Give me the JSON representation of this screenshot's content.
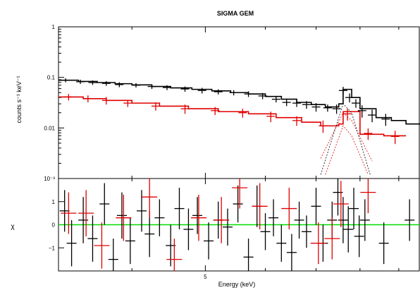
{
  "chart_data": [
    {
      "panel": "spectrum",
      "type": "line",
      "title": "SIGMA GEM",
      "ylabel": "counts s⁻¹ keV⁻¹",
      "yscale": "log",
      "ylim": [
        0.001,
        1
      ],
      "yticks": [
        {
          "value": 1,
          "label": "1"
        },
        {
          "value": 0.1,
          "label": "0.1"
        },
        {
          "value": 0.01,
          "label": "0.01"
        },
        {
          "value": 0.001,
          "label": "10⁻³"
        }
      ],
      "xscale": "log",
      "xlim": [
        3.2,
        9.6
      ],
      "series": [
        {
          "color": "#000000",
          "kind": "data",
          "points": [
            {
              "x": 3.27,
              "y": 0.088,
              "yerr": 0.008
            },
            {
              "x": 3.42,
              "y": 0.082,
              "yerr": 0.008
            },
            {
              "x": 3.55,
              "y": 0.079,
              "yerr": 0.008
            },
            {
              "x": 3.7,
              "y": 0.076,
              "yerr": 0.008
            },
            {
              "x": 3.85,
              "y": 0.072,
              "yerr": 0.008
            },
            {
              "x": 4.05,
              "y": 0.07,
              "yerr": 0.007
            },
            {
              "x": 4.25,
              "y": 0.066,
              "yerr": 0.007
            },
            {
              "x": 4.45,
              "y": 0.063,
              "yerr": 0.007
            },
            {
              "x": 4.7,
              "y": 0.059,
              "yerr": 0.007
            },
            {
              "x": 4.95,
              "y": 0.055,
              "yerr": 0.007
            },
            {
              "x": 5.2,
              "y": 0.052,
              "yerr": 0.006
            },
            {
              "x": 5.45,
              "y": 0.05,
              "yerr": 0.006
            },
            {
              "x": 5.7,
              "y": 0.047,
              "yerr": 0.006
            },
            {
              "x": 5.95,
              "y": 0.043,
              "yerr": 0.006
            },
            {
              "x": 6.2,
              "y": 0.037,
              "yerr": 0.005
            },
            {
              "x": 6.4,
              "y": 0.032,
              "yerr": 0.005
            },
            {
              "x": 6.6,
              "y": 0.031,
              "yerr": 0.005
            },
            {
              "x": 6.8,
              "y": 0.029,
              "yerr": 0.005
            },
            {
              "x": 7.0,
              "y": 0.026,
              "yerr": 0.005
            },
            {
              "x": 7.25,
              "y": 0.025,
              "yerr": 0.004
            },
            {
              "x": 7.45,
              "y": 0.024,
              "yerr": 0.005
            },
            {
              "x": 7.6,
              "y": 0.055,
              "yerr": 0.01
            },
            {
              "x": 7.75,
              "y": 0.04,
              "yerr": 0.008
            },
            {
              "x": 7.9,
              "y": 0.031,
              "yerr": 0.006
            },
            {
              "x": 8.05,
              "y": 0.022,
              "yerr": 0.006
            },
            {
              "x": 8.3,
              "y": 0.018,
              "yerr": 0.005
            },
            {
              "x": 8.65,
              "y": 0.015,
              "yerr": 0.004
            }
          ]
        },
        {
          "color": "#000000",
          "kind": "model",
          "steps": [
            [
              3.2,
              0.088
            ],
            [
              3.4,
              0.083
            ],
            [
              3.6,
              0.079
            ],
            [
              3.8,
              0.075
            ],
            [
              4.0,
              0.071
            ],
            [
              4.25,
              0.066
            ],
            [
              4.5,
              0.062
            ],
            [
              4.8,
              0.058
            ],
            [
              5.1,
              0.054
            ],
            [
              5.4,
              0.05
            ],
            [
              5.7,
              0.047
            ],
            [
              6.0,
              0.042
            ],
            [
              6.3,
              0.037
            ],
            [
              6.6,
              0.032
            ],
            [
              6.9,
              0.029
            ],
            [
              7.2,
              0.026
            ],
            [
              7.5,
              0.03
            ],
            [
              7.6,
              0.058
            ],
            [
              7.8,
              0.04
            ],
            [
              8.0,
              0.024
            ],
            [
              8.4,
              0.016
            ],
            [
              8.8,
              0.014
            ],
            [
              9.2,
              0.012
            ],
            [
              9.6,
              0.012
            ]
          ]
        },
        {
          "color": "#e00000",
          "kind": "data",
          "points": [
            {
              "x": 3.3,
              "y": 0.041,
              "yerr": 0.006
            },
            {
              "x": 3.5,
              "y": 0.038,
              "yerr": 0.006
            },
            {
              "x": 3.7,
              "y": 0.035,
              "yerr": 0.006
            },
            {
              "x": 3.95,
              "y": 0.031,
              "yerr": 0.005
            },
            {
              "x": 4.3,
              "y": 0.027,
              "yerr": 0.005
            },
            {
              "x": 4.7,
              "y": 0.024,
              "yerr": 0.005
            },
            {
              "x": 5.15,
              "y": 0.022,
              "yerr": 0.004
            },
            {
              "x": 5.6,
              "y": 0.02,
              "yerr": 0.004
            },
            {
              "x": 6.1,
              "y": 0.017,
              "yerr": 0.004
            },
            {
              "x": 6.6,
              "y": 0.014,
              "yerr": 0.003
            },
            {
              "x": 7.15,
              "y": 0.011,
              "yerr": 0.003
            },
            {
              "x": 7.7,
              "y": 0.019,
              "yerr": 0.005
            },
            {
              "x": 8.2,
              "y": 0.0078,
              "yerr": 0.002
            },
            {
              "x": 8.9,
              "y": 0.0068,
              "yerr": 0.002
            }
          ]
        },
        {
          "color": "#e00000",
          "kind": "model",
          "steps": [
            [
              3.2,
              0.041
            ],
            [
              3.45,
              0.038
            ],
            [
              3.7,
              0.035
            ],
            [
              4.0,
              0.031
            ],
            [
              4.35,
              0.027
            ],
            [
              4.75,
              0.024
            ],
            [
              5.2,
              0.021
            ],
            [
              5.7,
              0.019
            ],
            [
              6.2,
              0.016
            ],
            [
              6.7,
              0.013
            ],
            [
              7.1,
              0.011
            ],
            [
              7.5,
              0.012
            ],
            [
              7.6,
              0.021
            ],
            [
              7.85,
              0.021
            ],
            [
              8.0,
              0.0075
            ],
            [
              8.6,
              0.007
            ],
            [
              9.2,
              0.007
            ]
          ]
        },
        {
          "color": "#e00000",
          "kind": "component",
          "points": [
            [
              7.1,
              0.0025
            ],
            [
              7.6,
              0.02
            ],
            [
              7.8,
              0.014
            ],
            [
              8.3,
              0.0022
            ]
          ]
        },
        {
          "color": "#e00000",
          "kind": "component",
          "points": [
            [
              7.2,
              0.0012
            ],
            [
              7.6,
              0.011
            ],
            [
              7.8,
              0.007
            ],
            [
              8.2,
              0.0012
            ]
          ]
        },
        {
          "color": "#000000",
          "kind": "component",
          "points": [
            [
              7.1,
              0.0012
            ],
            [
              7.6,
              0.03
            ],
            [
              7.8,
              0.02
            ],
            [
              8.25,
              0.0012
            ]
          ]
        }
      ]
    },
    {
      "panel": "residuals",
      "type": "scatter",
      "xlabel": "Energy (keV)",
      "ylabel": "χ",
      "ylim": [
        -2,
        2
      ],
      "yticks": [
        {
          "value": 1,
          "label": "1"
        },
        {
          "value": 0,
          "label": "0"
        },
        {
          "value": -1,
          "label": "−1"
        }
      ],
      "xscale": "log",
      "xlim": [
        3.2,
        9.6
      ],
      "xticks": [
        {
          "value": 5,
          "label": "5"
        }
      ],
      "zero_line_color": "#00dd00",
      "series": [
        {
          "color": "#000000",
          "points": [
            {
              "x": 3.26,
              "y": 0.6,
              "yerr": 0.9
            },
            {
              "x": 3.33,
              "y": -0.8,
              "yerr": 1.0
            },
            {
              "x": 3.45,
              "y": 0.2,
              "yerr": 1.0
            },
            {
              "x": 3.55,
              "y": -0.6,
              "yerr": 1.0
            },
            {
              "x": 3.68,
              "y": 0.9,
              "yerr": 0.9
            },
            {
              "x": 3.78,
              "y": -1.5,
              "yerr": 0.9
            },
            {
              "x": 3.88,
              "y": 0.4,
              "yerr": 1.0
            },
            {
              "x": 3.98,
              "y": -0.7,
              "yerr": 1.0
            },
            {
              "x": 4.12,
              "y": 0.6,
              "yerr": 0.9
            },
            {
              "x": 4.22,
              "y": -0.4,
              "yerr": 1.0
            },
            {
              "x": 4.35,
              "y": 0.3,
              "yerr": 0.8
            },
            {
              "x": 4.5,
              "y": -0.9,
              "yerr": 0.9
            },
            {
              "x": 4.62,
              "y": 0.7,
              "yerr": 0.9
            },
            {
              "x": 4.75,
              "y": -0.2,
              "yerr": 0.9
            },
            {
              "x": 4.88,
              "y": 0.4,
              "yerr": 0.8
            },
            {
              "x": 5.05,
              "y": -0.7,
              "yerr": 0.8
            },
            {
              "x": 5.2,
              "y": 0.2,
              "yerr": 0.8
            },
            {
              "x": 5.35,
              "y": -0.1,
              "yerr": 0.8
            },
            {
              "x": 5.52,
              "y": 0.9,
              "yerr": 0.8
            },
            {
              "x": 5.7,
              "y": -1.4,
              "yerr": 0.8
            },
            {
              "x": 5.85,
              "y": 0.8,
              "yerr": 0.9
            },
            {
              "x": 6.0,
              "y": -0.3,
              "yerr": 0.8
            },
            {
              "x": 6.15,
              "y": 0.3,
              "yerr": 0.8
            },
            {
              "x": 6.3,
              "y": -0.8,
              "yerr": 0.8
            },
            {
              "x": 6.5,
              "y": -1.2,
              "yerr": 0.8
            },
            {
              "x": 6.65,
              "y": 0.2,
              "yerr": 0.8
            },
            {
              "x": 6.8,
              "y": -0.3,
              "yerr": 0.7
            },
            {
              "x": 7.0,
              "y": 0.8,
              "yerr": 0.8
            },
            {
              "x": 7.15,
              "y": -0.8,
              "yerr": 0.8
            },
            {
              "x": 7.35,
              "y": 0.2,
              "yerr": 0.8
            },
            {
              "x": 7.48,
              "y": 1.4,
              "yerr": 1.0
            },
            {
              "x": 7.6,
              "y": 0.2,
              "yerr": 1.0
            },
            {
              "x": 7.72,
              "y": -0.2,
              "yerr": 1.0
            },
            {
              "x": 7.85,
              "y": 0.7,
              "yerr": 0.9
            },
            {
              "x": 7.98,
              "y": -0.5,
              "yerr": 0.9
            },
            {
              "x": 8.12,
              "y": 0.2,
              "yerr": 0.9
            },
            {
              "x": 8.6,
              "y": -0.8,
              "yerr": 0.9
            },
            {
              "x": 9.3,
              "y": 0.2,
              "yerr": 0.9
            }
          ]
        },
        {
          "color": "#e00000",
          "points": [
            {
              "x": 3.3,
              "y": 0.5,
              "yerr": 0.9
            },
            {
              "x": 3.48,
              "y": 0.5,
              "yerr": 1.0
            },
            {
              "x": 3.65,
              "y": -0.9,
              "yerr": 1.0
            },
            {
              "x": 3.9,
              "y": 0.3,
              "yerr": 1.0
            },
            {
              "x": 4.22,
              "y": 1.2,
              "yerr": 0.9
            },
            {
              "x": 4.55,
              "y": -1.5,
              "yerr": 0.9
            },
            {
              "x": 4.9,
              "y": 0.3,
              "yerr": 1.0
            },
            {
              "x": 5.25,
              "y": 0.2,
              "yerr": 1.0
            },
            {
              "x": 5.55,
              "y": 1.6,
              "yerr": 0.9
            },
            {
              "x": 5.9,
              "y": 0.8,
              "yerr": 1.0
            },
            {
              "x": 6.45,
              "y": 0.7,
              "yerr": 0.9
            },
            {
              "x": 7.05,
              "y": -0.8,
              "yerr": 0.9
            },
            {
              "x": 7.35,
              "y": -0.6,
              "yerr": 0.9
            },
            {
              "x": 7.55,
              "y": 0.9,
              "yerr": 1.0
            },
            {
              "x": 8.2,
              "y": 1.4,
              "yerr": 0.9
            }
          ]
        }
      ]
    }
  ]
}
